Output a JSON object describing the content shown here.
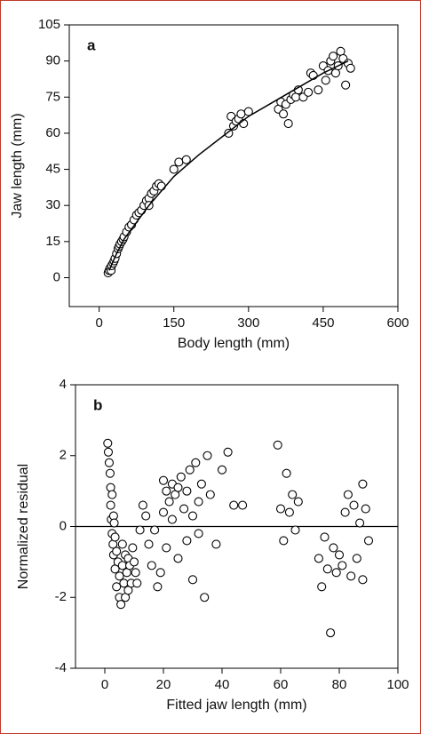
{
  "chart_data": [
    {
      "type": "scatter",
      "annotation": "a",
      "xlabel": "Body length (mm)",
      "ylabel": "Jaw length (mm)",
      "xlim": [
        -60,
        600
      ],
      "ylim": [
        -12,
        105
      ],
      "xticks": [
        0,
        150,
        300,
        450,
        600
      ],
      "yticks": [
        0,
        15,
        30,
        45,
        60,
        75,
        90,
        105
      ],
      "series": [
        {
          "mode": "markers",
          "color": "#000000",
          "x": [
            18,
            20,
            22,
            24,
            25,
            28,
            30,
            32,
            35,
            38,
            40,
            42,
            45,
            48,
            50,
            55,
            60,
            65,
            70,
            75,
            80,
            85,
            90,
            95,
            100,
            105,
            110,
            115,
            120,
            125,
            100,
            160,
            175,
            150,
            260,
            265,
            270,
            275,
            280,
            285,
            290,
            300,
            360,
            365,
            370,
            375,
            380,
            385,
            390,
            395,
            400,
            410,
            420,
            425,
            430,
            440,
            450,
            455,
            460,
            465,
            470,
            475,
            480,
            485,
            490,
            495,
            500,
            505
          ],
          "values": [
            2,
            3,
            4,
            3,
            5,
            6,
            7,
            8,
            10,
            12,
            13,
            14,
            15,
            16,
            17,
            19,
            21,
            22,
            24,
            26,
            27,
            28,
            30,
            32,
            33,
            35,
            36,
            38,
            39,
            38,
            30,
            48,
            49,
            45,
            60,
            67,
            63,
            65,
            66,
            68,
            64,
            69,
            70,
            73,
            68,
            72,
            64,
            74,
            76,
            75,
            78,
            75,
            77,
            85,
            84,
            78,
            88,
            82,
            86,
            90,
            92,
            85,
            88,
            94,
            91,
            80,
            89,
            87
          ]
        },
        {
          "mode": "line",
          "color": "#000000",
          "x": [
            20,
            35,
            50,
            75,
            100,
            150,
            200,
            250,
            300,
            350,
            400,
            450,
            500
          ],
          "values": [
            3,
            10,
            16,
            23,
            30,
            42,
            51,
            59,
            67,
            73,
            79,
            85,
            90
          ]
        }
      ]
    },
    {
      "type": "scatter",
      "annotation": "b",
      "xlabel": "Fitted jaw length (mm)",
      "ylabel": "Normalized residual",
      "xlim": [
        -10,
        100
      ],
      "ylim": [
        -4,
        4
      ],
      "xticks": [
        0,
        20,
        40,
        60,
        80,
        100
      ],
      "yticks": [
        -4,
        -2,
        0,
        2,
        4
      ],
      "hline": 0,
      "series": [
        {
          "mode": "markers",
          "color": "#000000",
          "x": [
            1,
            1.2,
            1.5,
            1.8,
            2,
            2,
            2.2,
            2.5,
            2.5,
            2.8,
            3,
            3,
            3.2,
            3.5,
            3.5,
            4,
            4,
            4.5,
            5,
            5,
            5.5,
            6,
            6,
            6.5,
            7,
            7,
            7.5,
            8,
            8,
            8.5,
            9,
            9.5,
            10,
            10.5,
            11,
            12,
            13,
            14,
            15,
            16,
            17,
            18,
            19,
            20,
            20,
            21,
            21,
            22,
            23,
            23,
            24,
            25,
            25,
            26,
            27,
            28,
            28,
            29,
            30,
            30,
            31,
            32,
            32,
            33,
            34,
            35,
            36,
            38,
            40,
            42,
            44,
            47,
            59,
            60,
            61,
            62,
            63,
            64,
            65,
            66,
            73,
            74,
            75,
            76,
            77,
            78,
            79,
            80,
            81,
            82,
            83,
            84,
            85,
            86,
            87,
            88,
            88,
            89,
            90
          ],
          "values": [
            2.35,
            2.1,
            1.8,
            1.5,
            1.1,
            0.6,
            0.2,
            -0.2,
            0.9,
            -0.5,
            0.3,
            -0.8,
            0.1,
            -0.3,
            -1.2,
            -0.7,
            -1.7,
            -1.0,
            -2.0,
            -1.4,
            -2.2,
            -1.1,
            -0.5,
            -1.6,
            -0.8,
            -2.0,
            -1.3,
            -0.9,
            -1.8,
            -1.1,
            -1.6,
            -0.6,
            -1.0,
            -1.3,
            -1.6,
            -0.1,
            0.6,
            0.3,
            -0.5,
            -1.1,
            -0.1,
            -1.7,
            -1.3,
            1.3,
            0.4,
            1.0,
            -0.6,
            0.7,
            1.2,
            0.2,
            0.9,
            1.1,
            -0.9,
            1.4,
            0.5,
            1.0,
            -0.4,
            1.6,
            0.3,
            -1.5,
            1.8,
            0.7,
            -0.2,
            1.2,
            -2.0,
            2.0,
            0.9,
            -0.5,
            1.6,
            2.1,
            0.6,
            0.6,
            2.3,
            0.5,
            -0.4,
            1.5,
            0.4,
            0.9,
            -0.1,
            0.7,
            -0.9,
            -1.7,
            -0.3,
            -1.2,
            -3.0,
            -0.6,
            -1.3,
            -0.8,
            -1.1,
            0.4,
            0.9,
            -1.4,
            0.6,
            -0.9,
            0.1,
            1.2,
            -1.5,
            0.5,
            -0.4
          ]
        }
      ]
    }
  ]
}
